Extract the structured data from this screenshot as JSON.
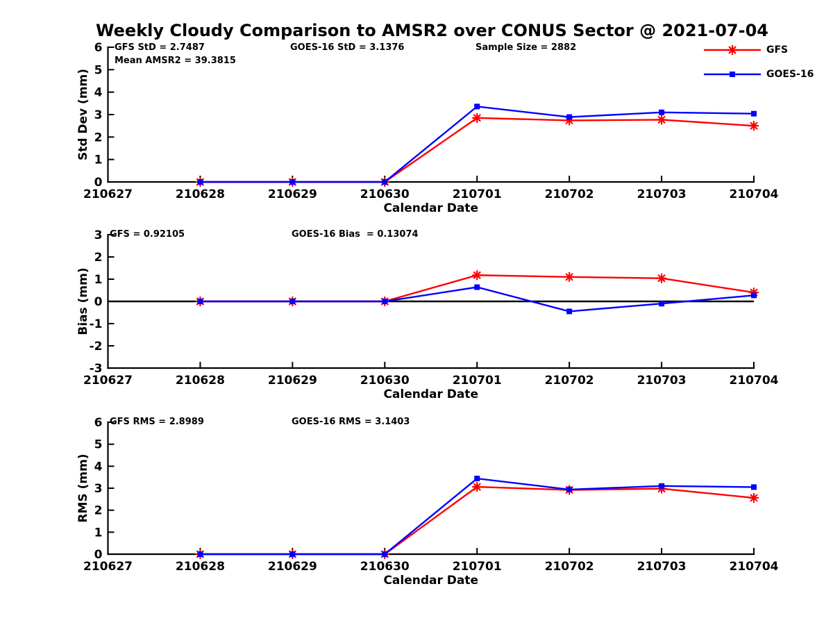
{
  "figure": {
    "title": "Weekly Cloudy Comparison to AMSR2 over CONUS Sector @ 2021-07-04"
  },
  "colors": {
    "gfs": "#ff0000",
    "goes16": "#0000ff",
    "axis": "#000000",
    "background": "#ffffff"
  },
  "legend": {
    "position": "top-right-outside",
    "items": [
      {
        "label": "GFS",
        "color": "#ff0000",
        "marker": "asterisk"
      },
      {
        "label": "GOES-16",
        "color": "#0000ff",
        "marker": "square"
      }
    ]
  },
  "chart_data": [
    {
      "type": "line",
      "name": "std-dev-panel",
      "ylabel": "Std Dev (mm)",
      "xlabel": "Calendar Date",
      "ylim": [
        0,
        6
      ],
      "yticks": [
        0,
        1,
        2,
        3,
        4,
        5,
        6
      ],
      "xtick_labels": [
        "210627",
        "210628",
        "210629",
        "210630",
        "210701",
        "210702",
        "210703",
        "210704"
      ],
      "x_data_dates": [
        "210628",
        "210629",
        "210630",
        "210701",
        "210702",
        "210703",
        "210704"
      ],
      "grid": false,
      "zero_line": false,
      "series": [
        {
          "name": "GFS",
          "color": "#ff0000",
          "marker": "asterisk",
          "values": [
            0,
            0,
            0,
            2.85,
            2.74,
            2.77,
            2.5
          ]
        },
        {
          "name": "GOES-16",
          "color": "#0000ff",
          "marker": "square",
          "values": [
            0,
            0,
            0,
            3.36,
            2.89,
            3.1,
            3.04
          ]
        }
      ],
      "annotations": [
        {
          "id": "gfs-std",
          "text": "GFS StD = 2.7487"
        },
        {
          "id": "mean-amsr2",
          "text": "Mean AMSR2 = 39.3815"
        },
        {
          "id": "goes16-std",
          "text": "GOES-16 StD = 3.1376"
        },
        {
          "id": "sample-size",
          "text": "Sample Size = 2882"
        }
      ]
    },
    {
      "type": "line",
      "name": "bias-panel",
      "ylabel": "Bias (mm)",
      "xlabel": "Calendar Date",
      "ylim": [
        -3,
        3
      ],
      "yticks": [
        -3,
        -2,
        -1,
        0,
        1,
        2,
        3
      ],
      "xtick_labels": [
        "210627",
        "210628",
        "210629",
        "210630",
        "210701",
        "210702",
        "210703",
        "210704"
      ],
      "x_data_dates": [
        "210628",
        "210629",
        "210630",
        "210701",
        "210702",
        "210703",
        "210704"
      ],
      "grid": false,
      "zero_line": true,
      "series": [
        {
          "name": "GFS",
          "color": "#ff0000",
          "marker": "asterisk",
          "values": [
            0,
            0,
            0,
            1.18,
            1.1,
            1.04,
            0.4
          ]
        },
        {
          "name": "GOES-16",
          "color": "#0000ff",
          "marker": "square",
          "values": [
            0,
            0,
            0,
            0.64,
            -0.45,
            -0.1,
            0.27
          ]
        }
      ],
      "annotations": [
        {
          "id": "gfs-bias",
          "text": "GFS = 0.92105"
        },
        {
          "id": "goes16-bias",
          "text": "GOES-16 Bias  = 0.13074"
        }
      ]
    },
    {
      "type": "line",
      "name": "rms-panel",
      "ylabel": "RMS (mm)",
      "xlabel": "Calendar Date",
      "ylim": [
        0,
        6
      ],
      "yticks": [
        0,
        1,
        2,
        3,
        4,
        5,
        6
      ],
      "xtick_labels": [
        "210627",
        "210628",
        "210629",
        "210630",
        "210701",
        "210702",
        "210703",
        "210704"
      ],
      "x_data_dates": [
        "210628",
        "210629",
        "210630",
        "210701",
        "210702",
        "210703",
        "210704"
      ],
      "grid": false,
      "zero_line": false,
      "series": [
        {
          "name": "GFS",
          "color": "#ff0000",
          "marker": "asterisk",
          "values": [
            0,
            0,
            0,
            3.06,
            2.92,
            2.98,
            2.56
          ]
        },
        {
          "name": "GOES-16",
          "color": "#0000ff",
          "marker": "square",
          "values": [
            0,
            0,
            0,
            3.44,
            2.94,
            3.1,
            3.05
          ]
        }
      ],
      "annotations": [
        {
          "id": "gfs-rms",
          "text": "GFS RMS = 2.8989"
        },
        {
          "id": "goes16-rms",
          "text": "GOES-16 RMS = 3.1403"
        }
      ]
    }
  ]
}
